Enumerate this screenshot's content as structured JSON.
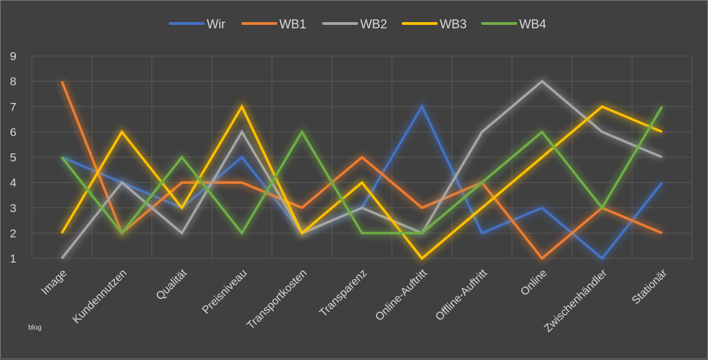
{
  "chart_data": {
    "type": "line",
    "categories": [
      "Image",
      "Kundennutzen",
      "Qualität",
      "Preisniveau",
      "Transportkosten",
      "Transparenz",
      "Online-Auftritt",
      "Offline-Auftritt",
      "Online",
      "Zwischenhändler",
      "Stationär"
    ],
    "ylim": [
      1,
      9
    ],
    "yticks": [
      "1",
      "2",
      "3",
      "4",
      "5",
      "6",
      "7",
      "8",
      "9"
    ],
    "grid": true,
    "legend_position": "top",
    "series": [
      {
        "name": "Wir",
        "color": "#4472c4",
        "values": [
          5,
          4,
          3,
          5,
          2,
          3,
          7,
          2,
          3,
          1,
          4
        ]
      },
      {
        "name": "WB1",
        "color": "#ed7d31",
        "values": [
          8,
          2,
          4,
          4,
          3,
          5,
          3,
          4,
          1,
          3,
          2
        ]
      },
      {
        "name": "WB2",
        "color": "#a5a5a5",
        "values": [
          1,
          4,
          2,
          6,
          2,
          3,
          2,
          6,
          8,
          6,
          5
        ]
      },
      {
        "name": "WB3",
        "color": "#ffc000",
        "values": [
          2,
          6,
          3,
          7,
          2,
          4,
          1,
          3,
          5,
          7,
          6
        ]
      },
      {
        "name": "WB4",
        "color": "#70ad47",
        "values": [
          5,
          2,
          5,
          2,
          6,
          2,
          2,
          4,
          6,
          3,
          7
        ]
      }
    ]
  },
  "watermark": "blog"
}
